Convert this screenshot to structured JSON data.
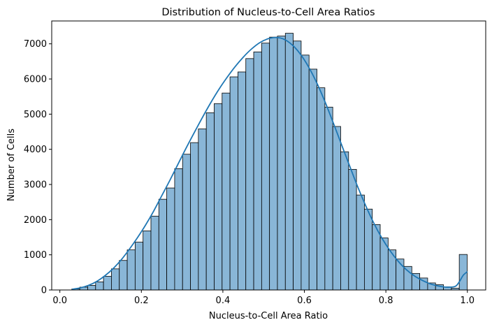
{
  "chart_data": {
    "type": "bar",
    "title": "Distribution of Nucleus-to-Cell Area Ratios",
    "xlabel": "Nucleus-to-Cell Area Ratio",
    "ylabel": "Number of Cells",
    "xlim": [
      -0.02,
      1.045
    ],
    "ylim": [
      0,
      7650
    ],
    "xticks": [
      0.0,
      0.2,
      0.4,
      0.6,
      0.8,
      1.0
    ],
    "xtick_labels": [
      "0.0",
      "0.2",
      "0.4",
      "0.6",
      "0.8",
      "1.0"
    ],
    "yticks": [
      0,
      1000,
      2000,
      3000,
      4000,
      5000,
      6000,
      7000
    ],
    "ytick_labels": [
      "0",
      "1000",
      "2000",
      "3000",
      "4000",
      "5000",
      "6000",
      "7000"
    ],
    "bin_edges": [
      0.0295,
      0.0489,
      0.0683,
      0.0877,
      0.1071,
      0.1265,
      0.1459,
      0.1653,
      0.1847,
      0.2041,
      0.2235,
      0.2429,
      0.2623,
      0.2817,
      0.3011,
      0.3205,
      0.3399,
      0.3593,
      0.3787,
      0.3981,
      0.4175,
      0.4369,
      0.4563,
      0.4757,
      0.4951,
      0.5145,
      0.5339,
      0.5533,
      0.5727,
      0.5921,
      0.6115,
      0.6309,
      0.6503,
      0.6697,
      0.6891,
      0.7085,
      0.7279,
      0.7473,
      0.7667,
      0.7861,
      0.8055,
      0.8249,
      0.8443,
      0.8637,
      0.8831,
      0.9025,
      0.9219,
      0.9413,
      0.9607,
      0.9801,
      0.9995
    ],
    "counts": [
      30,
      80,
      130,
      230,
      390,
      600,
      840,
      1140,
      1360,
      1680,
      2100,
      2580,
      2900,
      3450,
      3860,
      4190,
      4580,
      5040,
      5300,
      5600,
      6060,
      6200,
      6580,
      6770,
      7020,
      7190,
      7220,
      7300,
      7080,
      6680,
      6280,
      5750,
      5200,
      4650,
      3930,
      3430,
      2700,
      2300,
      1860,
      1480,
      1140,
      880,
      670,
      470,
      340,
      200,
      150,
      90,
      50,
      1010
    ],
    "kde_x": [
      0.03,
      0.05,
      0.07,
      0.09,
      0.11,
      0.13,
      0.15,
      0.17,
      0.19,
      0.21,
      0.23,
      0.25,
      0.27,
      0.29,
      0.31,
      0.33,
      0.35,
      0.37,
      0.39,
      0.41,
      0.43,
      0.45,
      0.47,
      0.49,
      0.51,
      0.53,
      0.55,
      0.57,
      0.59,
      0.61,
      0.63,
      0.65,
      0.67,
      0.69,
      0.71,
      0.73,
      0.75,
      0.77,
      0.79,
      0.81,
      0.83,
      0.85,
      0.87,
      0.89,
      0.91,
      0.93,
      0.95,
      0.97,
      0.98,
      0.99,
      1.0
    ],
    "kde_y": [
      20,
      60,
      130,
      240,
      400,
      600,
      850,
      1150,
      1480,
      1840,
      2240,
      2680,
      3120,
      3580,
      4040,
      4480,
      4910,
      5320,
      5700,
      6040,
      6350,
      6620,
      6850,
      7030,
      7140,
      7180,
      7130,
      6970,
      6710,
      6350,
      5900,
      5370,
      4780,
      4170,
      3560,
      2960,
      2410,
      1910,
      1480,
      1120,
      820,
      580,
      400,
      270,
      170,
      110,
      80,
      100,
      230,
      420,
      520
    ],
    "bar_color": "#89b6d7",
    "bar_edge_color": "#000000",
    "line_color": "#1f77b4",
    "grid": false,
    "legend": "none"
  }
}
